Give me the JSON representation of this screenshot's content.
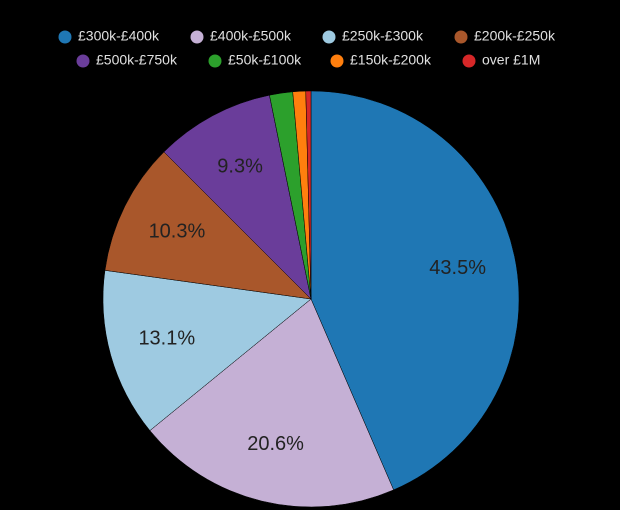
{
  "chart_data": {
    "type": "pie",
    "categories": [
      "£300k-£400k",
      "£400k-£500k",
      "£250k-£300k",
      "£200k-£250k",
      "£500k-£750k",
      "£50k-£100k",
      "£150k-£200k",
      "over £1M"
    ],
    "values": [
      43.5,
      20.6,
      13.1,
      10.3,
      9.3,
      1.8,
      1.0,
      0.4
    ],
    "value_labels": [
      "43.5%",
      "20.6%",
      "13.1%",
      "10.3%",
      "9.3%",
      null,
      null,
      null
    ],
    "colors": [
      "#1f77b4",
      "#c5b0d5",
      "#9ecae1",
      "#a9572b",
      "#6a3d9a",
      "#2ca02c",
      "#ff7f0e",
      "#d62728"
    ],
    "legend": "top"
  }
}
